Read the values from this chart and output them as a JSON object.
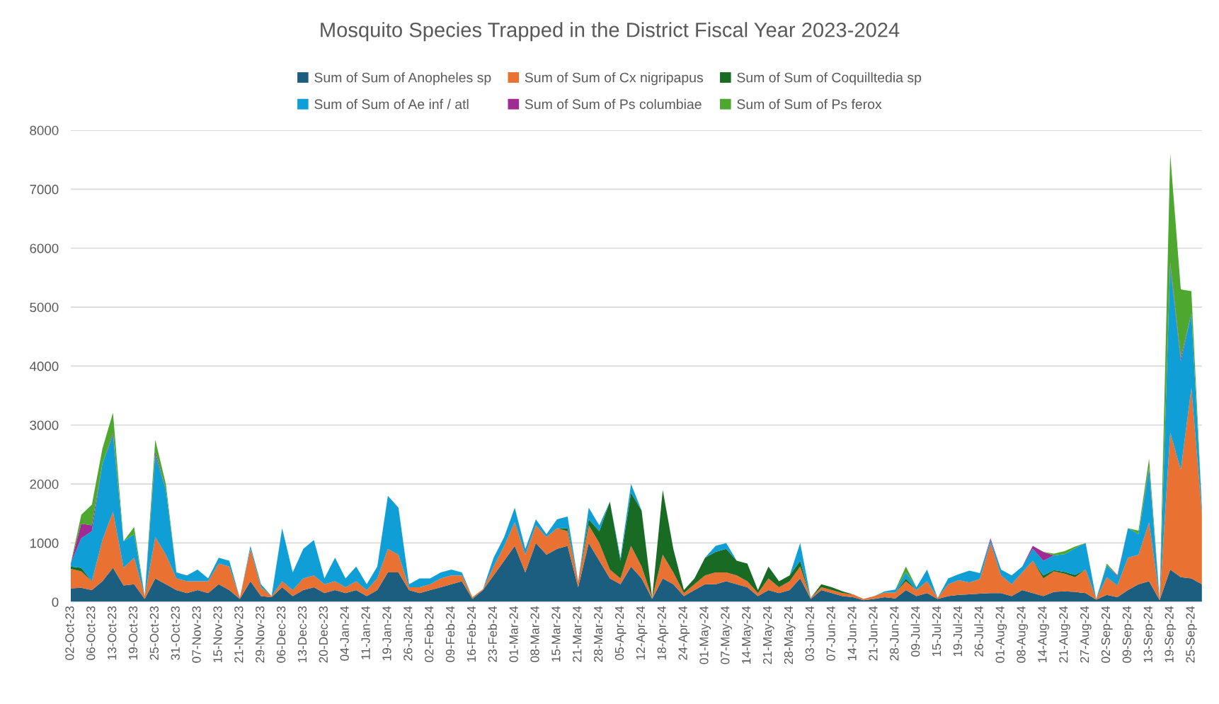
{
  "chart_data": {
    "type": "area",
    "stacked": true,
    "title": "Mosquito Species Trapped in the District Fiscal Year 2023-2024",
    "categories": [
      "02-Oct-23",
      null,
      "06-Oct-23",
      null,
      "13-Oct-23",
      null,
      "19-Oct-23",
      null,
      "25-Oct-23",
      null,
      "31-Oct-23",
      null,
      "07-Nov-23",
      null,
      "15-Nov-23",
      null,
      "21-Nov-23",
      null,
      "29-Nov-23",
      null,
      "06-Dec-23",
      null,
      "13-Dec-23",
      null,
      "20-Dec-23",
      null,
      "04-Jan-24",
      null,
      "11-Jan-24",
      null,
      "19-Jan-24",
      null,
      "26-Jan-24",
      null,
      "02-Feb-24",
      null,
      "09-Feb-24",
      null,
      "16-Feb-24",
      null,
      "23-Feb-24",
      null,
      "01-Mar-24",
      null,
      "08-Mar-24",
      null,
      "15-Mar-24",
      null,
      "21-Mar-24",
      null,
      "28-Mar-24",
      null,
      "05-Apr-24",
      null,
      "12-Apr-24",
      null,
      "18-Apr-24",
      null,
      "24-Apr-24",
      null,
      "01-May-24",
      null,
      "07-May-24",
      null,
      "14-May-24",
      null,
      "21-May-24",
      null,
      "28-May-24",
      null,
      "03-Jun-24",
      null,
      "07-Jun-24",
      null,
      "14-Jun-24",
      null,
      "21-Jun-24",
      null,
      "28-Jun-24",
      null,
      "09-Jul-24",
      null,
      "15-Jul-24",
      null,
      "19-Jul-24",
      null,
      "26-Jul-24",
      null,
      "01-Aug-24",
      null,
      "08-Aug-24",
      null,
      "14-Aug-24",
      null,
      "21-Aug-24",
      null,
      "27-Aug-24",
      null,
      "02-Sep-24",
      null,
      "09-Sep-24",
      null,
      "13-Sep-24",
      null,
      "19-Sep-24",
      null,
      "25-Sep-24",
      null
    ],
    "series": [
      {
        "name": "Sum of Sum of Anopheles sp",
        "color": "#1b5e80",
        "values": [
          230,
          240,
          200,
          350,
          580,
          280,
          300,
          50,
          400,
          300,
          200,
          150,
          200,
          150,
          300,
          200,
          50,
          350,
          100,
          80,
          250,
          100,
          200,
          250,
          150,
          200,
          150,
          200,
          100,
          200,
          500,
          500,
          200,
          150,
          200,
          250,
          300,
          350,
          50,
          200,
          450,
          700,
          950,
          500,
          1000,
          800,
          900,
          950,
          250,
          1000,
          700,
          400,
          300,
          600,
          400,
          50,
          400,
          300,
          100,
          200,
          300,
          300,
          350,
          300,
          250,
          100,
          200,
          150,
          200,
          400,
          50,
          200,
          150,
          100,
          80,
          30,
          50,
          80,
          60,
          200,
          100,
          150,
          50,
          100,
          120,
          130,
          140,
          150,
          150,
          100,
          200,
          150,
          100,
          170,
          180,
          170,
          150,
          40,
          120,
          80,
          200,
          300,
          350,
          30,
          550,
          420,
          400,
          300
        ]
      },
      {
        "name": "Sum of Sum of Cx nigripapus",
        "color": "#e97132",
        "values": [
          330,
          280,
          150,
          700,
          950,
          300,
          450,
          50,
          700,
          500,
          200,
          200,
          150,
          200,
          350,
          400,
          20,
          550,
          150,
          20,
          100,
          100,
          200,
          200,
          150,
          150,
          100,
          150,
          100,
          200,
          400,
          300,
          50,
          100,
          100,
          150,
          150,
          100,
          30,
          20,
          150,
          250,
          400,
          300,
          300,
          300,
          350,
          250,
          100,
          300,
          300,
          150,
          100,
          350,
          200,
          20,
          400,
          200,
          50,
          100,
          150,
          200,
          150,
          150,
          100,
          50,
          200,
          100,
          150,
          200,
          20,
          50,
          50,
          50,
          50,
          20,
          50,
          80,
          100,
          150,
          100,
          200,
          20,
          200,
          250,
          200,
          250,
          850,
          300,
          200,
          300,
          550,
          300,
          350,
          300,
          250,
          400,
          10,
          300,
          200,
          550,
          500,
          1000,
          20,
          2320,
          1820,
          3230,
          1200
        ]
      },
      {
        "name": "Sum of Sum of Coquilltedia sp",
        "color": "#196b24",
        "values": [
          40,
          60,
          0,
          0,
          0,
          0,
          0,
          0,
          0,
          0,
          0,
          0,
          0,
          0,
          0,
          0,
          0,
          0,
          0,
          0,
          0,
          0,
          0,
          0,
          0,
          0,
          0,
          0,
          0,
          0,
          0,
          0,
          0,
          0,
          0,
          0,
          0,
          0,
          0,
          0,
          0,
          0,
          0,
          0,
          0,
          0,
          0,
          50,
          0,
          100,
          200,
          1150,
          300,
          900,
          950,
          0,
          1100,
          400,
          50,
          100,
          300,
          350,
          400,
          250,
          300,
          50,
          200,
          100,
          100,
          100,
          0,
          50,
          50,
          30,
          0,
          0,
          0,
          0,
          0,
          50,
          0,
          0,
          0,
          0,
          0,
          0,
          0,
          0,
          0,
          0,
          0,
          0,
          50,
          20,
          30,
          40,
          0,
          0,
          0,
          0,
          0,
          0,
          0,
          0,
          0,
          0,
          0,
          0
        ]
      },
      {
        "name": "Sum of Sum of Ae inf / atl",
        "color": "#0f9ed5",
        "values": [
          50,
          500,
          850,
          1300,
          1300,
          450,
          400,
          0,
          1400,
          1100,
          100,
          100,
          200,
          50,
          100,
          100,
          0,
          50,
          50,
          0,
          900,
          300,
          500,
          600,
          100,
          400,
          150,
          250,
          100,
          200,
          900,
          800,
          50,
          150,
          100,
          100,
          100,
          50,
          0,
          0,
          150,
          150,
          250,
          100,
          100,
          50,
          150,
          200,
          0,
          200,
          100,
          0,
          50,
          150,
          0,
          0,
          0,
          0,
          0,
          0,
          0,
          100,
          100,
          0,
          0,
          0,
          0,
          0,
          0,
          300,
          0,
          0,
          0,
          0,
          0,
          0,
          0,
          20,
          50,
          100,
          50,
          200,
          0,
          100,
          100,
          200,
          100,
          50,
          100,
          150,
          100,
          200,
          250,
          250,
          300,
          450,
          450,
          0,
          200,
          150,
          500,
          350,
          900,
          0,
          2840,
          1840,
          1260,
          100
        ]
      },
      {
        "name": "Sum of Sum of Ps columbiae",
        "color": "#a02b93",
        "values": [
          0,
          250,
          100,
          0,
          30,
          0,
          0,
          0,
          50,
          0,
          0,
          0,
          0,
          0,
          0,
          0,
          0,
          0,
          0,
          0,
          0,
          0,
          0,
          0,
          0,
          0,
          0,
          0,
          0,
          0,
          0,
          0,
          0,
          0,
          0,
          0,
          0,
          0,
          0,
          0,
          0,
          0,
          0,
          0,
          0,
          0,
          0,
          0,
          0,
          0,
          0,
          0,
          0,
          0,
          0,
          0,
          0,
          0,
          0,
          0,
          0,
          0,
          0,
          0,
          0,
          0,
          0,
          0,
          0,
          0,
          0,
          0,
          0,
          0,
          0,
          0,
          0,
          0,
          0,
          0,
          0,
          0,
          0,
          0,
          0,
          0,
          0,
          30,
          0,
          0,
          0,
          50,
          150,
          0,
          0,
          0,
          0,
          0,
          0,
          20,
          0,
          0,
          30,
          0,
          40,
          60,
          0,
          0
        ]
      },
      {
        "name": "Sum of Sum of Ps ferox",
        "color": "#4ea72e",
        "values": [
          0,
          150,
          350,
          250,
          350,
          0,
          120,
          0,
          200,
          100,
          0,
          0,
          0,
          0,
          0,
          0,
          0,
          0,
          0,
          0,
          0,
          0,
          0,
          0,
          0,
          0,
          0,
          0,
          0,
          0,
          0,
          0,
          0,
          0,
          0,
          0,
          0,
          0,
          0,
          0,
          0,
          0,
          0,
          0,
          0,
          0,
          0,
          0,
          0,
          0,
          0,
          0,
          0,
          0,
          0,
          0,
          0,
          0,
          0,
          0,
          0,
          0,
          0,
          0,
          0,
          0,
          0,
          0,
          0,
          0,
          0,
          0,
          0,
          0,
          0,
          0,
          0,
          0,
          0,
          100,
          0,
          0,
          0,
          0,
          0,
          0,
          0,
          0,
          0,
          0,
          0,
          0,
          0,
          30,
          50,
          30,
          0,
          0,
          30,
          10,
          0,
          60,
          150,
          0,
          1850,
          1160,
          380,
          0
        ]
      }
    ],
    "ylim": [
      0,
      8000
    ],
    "yticks": [
      0,
      1000,
      2000,
      3000,
      4000,
      5000,
      6000,
      7000,
      8000
    ],
    "grid": "y",
    "legend": "top"
  }
}
